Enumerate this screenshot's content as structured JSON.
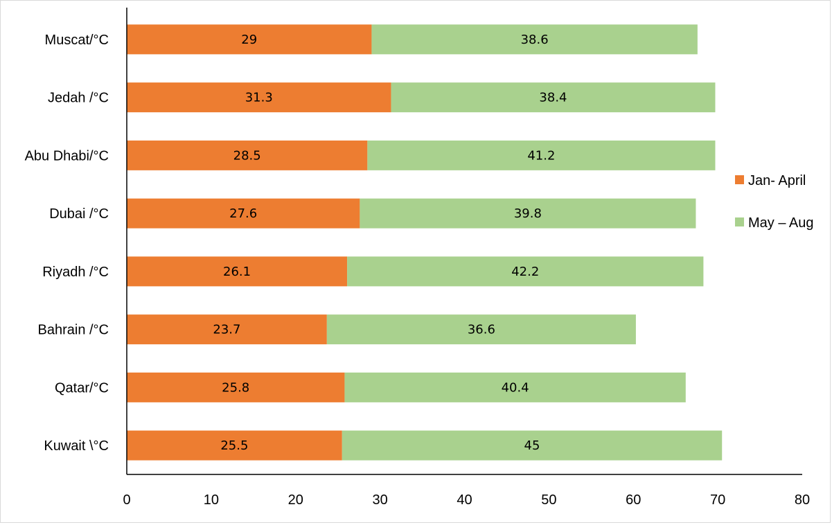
{
  "chart_data": {
    "type": "bar",
    "orientation": "horizontal",
    "stacked": true,
    "categories": [
      "Muscat/°C",
      "Jedah /°C",
      "Abu Dhabi/°C",
      "Dubai /°C",
      "Riyadh /°C",
      "Bahrain /°C",
      "Qatar/°C",
      "Kuwait \\°C"
    ],
    "series": [
      {
        "name": "Jan- April",
        "color": "#ed7d31",
        "values": [
          29,
          31.3,
          28.5,
          27.6,
          26.1,
          23.7,
          25.8,
          25.5
        ]
      },
      {
        "name": "May – Aug",
        "color": "#a9d18e",
        "values": [
          38.6,
          38.4,
          41.2,
          39.8,
          42.2,
          36.6,
          40.4,
          45
        ]
      }
    ],
    "xlim": [
      0,
      80
    ],
    "xticks": [
      0,
      10,
      20,
      30,
      40,
      50,
      60,
      70,
      80
    ],
    "grid": false,
    "legend_position": "right",
    "data_labels": true
  }
}
